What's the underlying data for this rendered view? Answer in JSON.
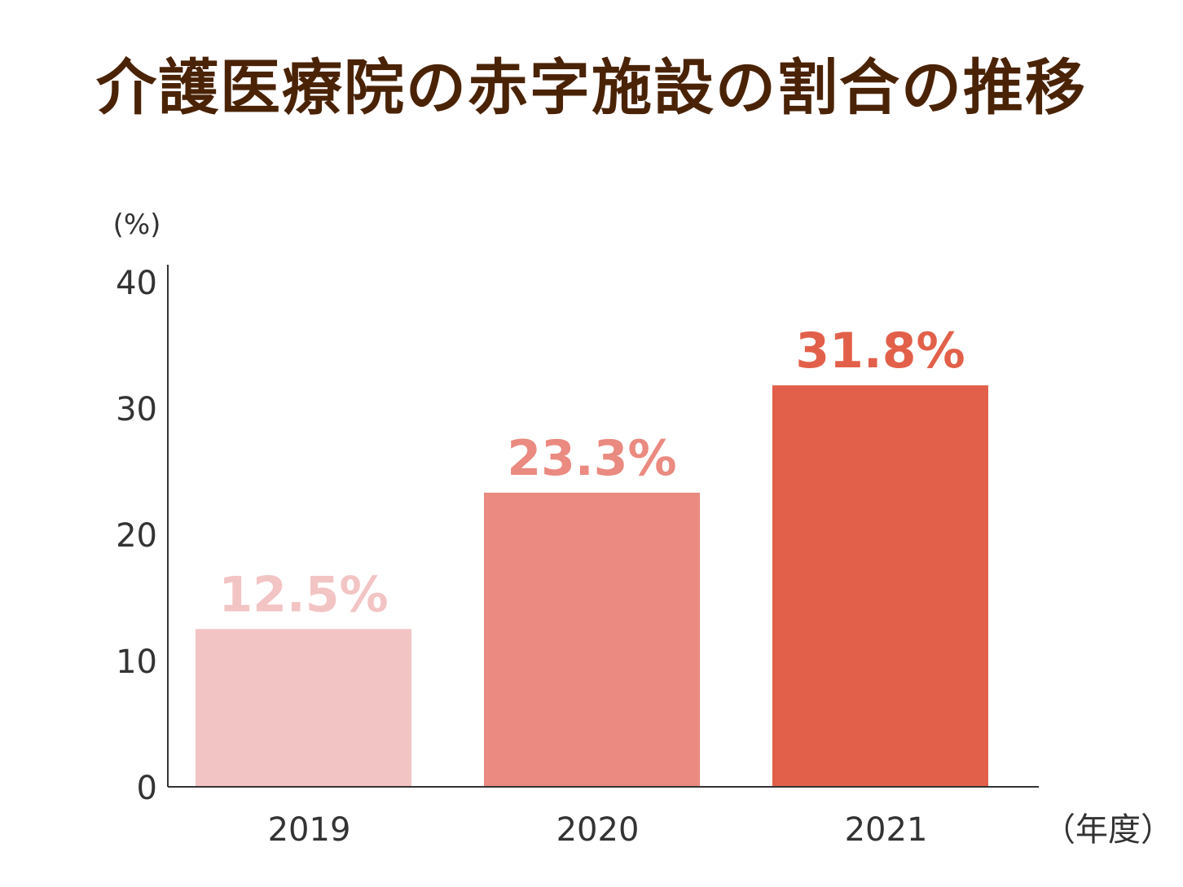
{
  "chart_data": {
    "type": "bar",
    "title": "介護医療院の赤字施設の割合の推移",
    "ylabel": "(%)",
    "xlabel": "（年度）",
    "categories": [
      "2019",
      "2020",
      "2021"
    ],
    "values": [
      12.5,
      23.3,
      31.8
    ],
    "data_labels": [
      "12.5%",
      "23.3%",
      "31.8%"
    ],
    "colors": [
      "#f2c4c3",
      "#ea8a80",
      "#e2604a"
    ],
    "label_colors": [
      "#f2c4c3",
      "#ea8a80",
      "#e2604a"
    ],
    "ylim": [
      0,
      40
    ],
    "yticks": [
      0,
      10,
      20,
      30,
      40
    ],
    "grid": false,
    "legend": "none"
  }
}
